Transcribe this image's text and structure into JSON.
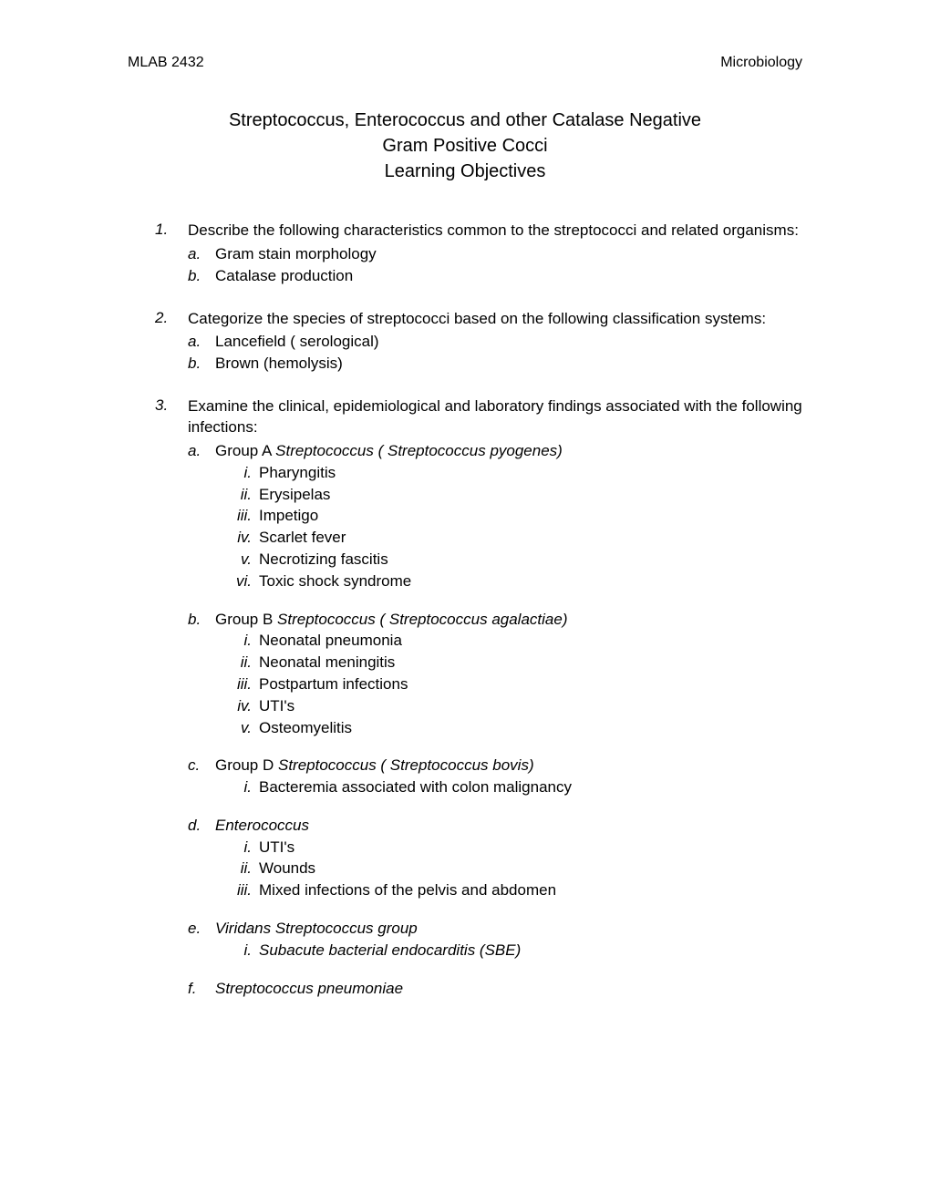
{
  "header": {
    "left": "MLAB 2432",
    "right": "Microbiology"
  },
  "title": {
    "line1": "Streptococcus, Enterococcus and other Catalase Negative",
    "line2": "Gram Positive Cocci",
    "line3": "Learning Objectives"
  },
  "obj1": {
    "num": "1.",
    "text": "Describe the following characteristics common to the streptococci and related organisms:",
    "a_l": "a.",
    "a_t": "Gram stain morphology",
    "b_l": "b.",
    "b_t": "Catalase production"
  },
  "obj2": {
    "num": "2.",
    "text": "Categorize the species of streptococci   based on the following classification systems:",
    "a_l": "a.",
    "a_t": "Lancefield ( serological)",
    "b_l": "b.",
    "b_t": "Brown (hemolysis)"
  },
  "obj3": {
    "num": "3.",
    "text": "Examine  the clinical, epidemiological and laboratory findings associated with the following infections:",
    "a": {
      "l": "a.",
      "pre": "Group A ",
      "it": "Streptococcus ( Streptococcus pyogenes)",
      "i1l": "i.",
      "i1": "Pharyngitis",
      "i2l": "ii.",
      "i2": "Erysipelas",
      "i3l": "iii.",
      "i3": "Impetigo",
      "i4l": "iv.",
      "i4": "Scarlet fever",
      "i5l": "v.",
      "i5": "Necrotizing fascitis",
      "i6l": "vi.",
      "i6": "Toxic shock syndrome"
    },
    "b": {
      "l": "b.",
      "pre": "Group B ",
      "it": "Streptococcus ( Streptococcus agalactiae)",
      "i1l": "i.",
      "i1": "Neonatal pneumonia",
      "i2l": "ii.",
      "i2": "Neonatal meningitis",
      "i3l": "iii.",
      "i3": "Postpartum infections",
      "i4l": "iv.",
      "i4": "UTI's",
      "i5l": "v.",
      "i5": "Osteomyelitis"
    },
    "c": {
      "l": "c.",
      "pre": "Group D ",
      "it": "Streptococcus ( Streptococcus bovis)",
      "i1l": "i.",
      "i1": "Bacteremia associated with colon malignancy"
    },
    "d": {
      "l": "d.",
      "it": "Enterococcus",
      "i1l": "i.",
      "i1": "UTI's",
      "i2l": "ii.",
      "i2": "Wounds",
      "i3l": "iii.",
      "i3": "Mixed infections of the pelvis and abdomen"
    },
    "e": {
      "l": "e.",
      "it": "Viridans Streptococcus group",
      "i1l": "i.",
      "i1": "Subacute bacterial endocarditis (SBE)"
    },
    "f": {
      "l": "f.",
      "it": "Streptococcus pneumoniae"
    }
  },
  "style": {
    "page_bg": "#ffffff",
    "text_color": "#000000",
    "body_font_size_pt": 12,
    "title_font_size_pt": 14,
    "font_family": "Verdana"
  }
}
